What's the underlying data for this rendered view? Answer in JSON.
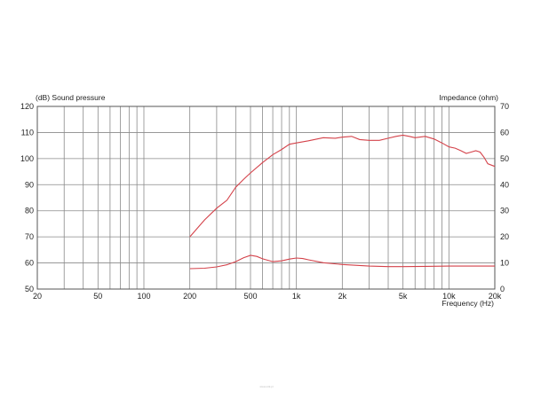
{
  "chart_data": {
    "type": "line",
    "y_left_label": "(dB)  Sound pressure",
    "y_right_label": "Impedance  (ohm)",
    "x_label": "Frequency  (Hz)",
    "x_scale": "log",
    "xlim": [
      20,
      20000
    ],
    "ylim_left": [
      50,
      120
    ],
    "ylim_right": [
      0,
      70
    ],
    "grid": true,
    "x_ticks": [
      {
        "v": 20,
        "label": "20"
      },
      {
        "v": 50,
        "label": "50"
      },
      {
        "v": 100,
        "label": "100"
      },
      {
        "v": 200,
        "label": "200"
      },
      {
        "v": 500,
        "label": "500"
      },
      {
        "v": 1000,
        "label": "1k"
      },
      {
        "v": 2000,
        "label": "2k"
      },
      {
        "v": 5000,
        "label": "5k"
      },
      {
        "v": 10000,
        "label": "10k"
      },
      {
        "v": 20000,
        "label": "20k"
      }
    ],
    "y_left_ticks": [
      "120",
      "110",
      "100",
      "90",
      "80",
      "70",
      "60",
      "50"
    ],
    "y_right_ticks": [
      "70",
      "60",
      "50",
      "40",
      "30",
      "20",
      "10",
      "0"
    ],
    "series": [
      {
        "axis": "left",
        "color": "#d4424a",
        "x": [
          200,
          250,
          300,
          350,
          400,
          450,
          500,
          600,
          700,
          800,
          900,
          1000,
          1200,
          1500,
          1800,
          2000,
          2300,
          2600,
          3000,
          3500,
          4000,
          4500,
          5000,
          5500,
          6000,
          7000,
          8000,
          9000,
          10000,
          11000,
          12000,
          13000,
          14000,
          15000,
          16000,
          17000,
          18000,
          20000
        ],
        "y": [
          70,
          76.5,
          81,
          84,
          89,
          92,
          94.5,
          98.5,
          101.5,
          103.5,
          105.5,
          106,
          106.8,
          108,
          107.8,
          108.2,
          108.5,
          107.3,
          107,
          107,
          107.8,
          108.5,
          109,
          108.5,
          108,
          108.5,
          107.5,
          106,
          104.5,
          104,
          103,
          102,
          102.5,
          103,
          102.5,
          100.5,
          98,
          97
        ]
      },
      {
        "axis": "right",
        "color": "#d4424a",
        "x": [
          200,
          250,
          300,
          350,
          400,
          450,
          500,
          550,
          600,
          700,
          800,
          900,
          1000,
          1100,
          1200,
          1500,
          2000,
          3000,
          4000,
          5000,
          7000,
          10000,
          15000,
          20000
        ],
        "y": [
          7.8,
          8,
          8.5,
          9.3,
          10.5,
          12,
          12.9,
          12.5,
          11.6,
          10.5,
          10.8,
          11.5,
          11.9,
          11.7,
          11.2,
          10.1,
          9.4,
          8.8,
          8.6,
          8.6,
          8.7,
          8.8,
          8.8,
          8.8
        ]
      }
    ]
  },
  "footer": {
    "watermark": "www.s4k.pl"
  }
}
